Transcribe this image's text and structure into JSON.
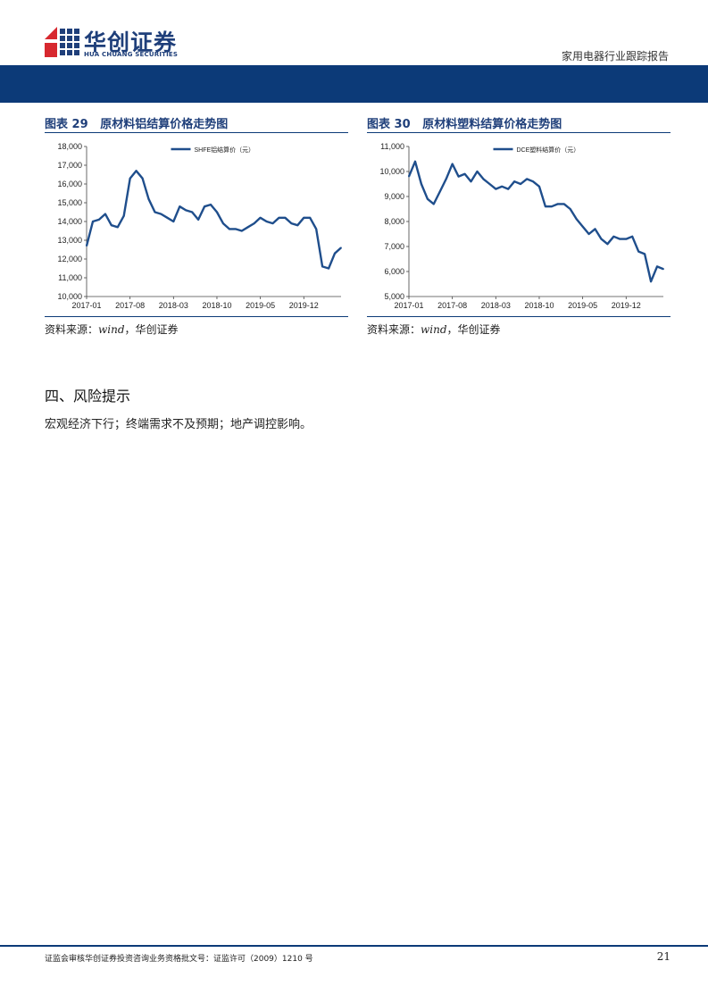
{
  "header": {
    "logo_cn": "华创证券",
    "logo_en": "HUA CHUANG SECURITIES",
    "report_type": "家用电器行业跟踪报告",
    "colors": {
      "brand_blue": "#0c3a78",
      "logo_red": "#d7282f"
    }
  },
  "figures": [
    {
      "label": "图表 29",
      "title": "原材料铝结算价格走势图",
      "source_prefix": "资料来源：",
      "source_italic": "wind",
      "source_suffix": "，华创证券"
    },
    {
      "label": "图表 30",
      "title": "原材料塑料结算价格走势图",
      "source_prefix": "资料来源：",
      "source_italic": "wind",
      "source_suffix": "，华创证券"
    }
  ],
  "chart_data": [
    {
      "type": "line",
      "legend": "SHFE铝结算价（元）",
      "legend_position": "top-center",
      "ylim": [
        10000,
        18000
      ],
      "yticks": [
        10000,
        11000,
        12000,
        13000,
        14000,
        15000,
        16000,
        17000,
        18000
      ],
      "ytick_labels": [
        "10,000",
        "11,000",
        "12,000",
        "13,000",
        "14,000",
        "15,000",
        "16,000",
        "17,000",
        "18,000"
      ],
      "xlim": [
        "2017-01",
        "2020-06"
      ],
      "xtick_labels": [
        "2017-01",
        "2017-08",
        "2018-03",
        "2018-10",
        "2019-05",
        "2019-12"
      ],
      "grid": false,
      "series_color": "#1f4e8c",
      "x": [
        "2017-01",
        "2017-02",
        "2017-03",
        "2017-04",
        "2017-05",
        "2017-06",
        "2017-07",
        "2017-08",
        "2017-09",
        "2017-10",
        "2017-11",
        "2017-12",
        "2018-01",
        "2018-02",
        "2018-03",
        "2018-04",
        "2018-05",
        "2018-06",
        "2018-07",
        "2018-08",
        "2018-09",
        "2018-10",
        "2018-11",
        "2018-12",
        "2019-01",
        "2019-02",
        "2019-03",
        "2019-04",
        "2019-05",
        "2019-06",
        "2019-07",
        "2019-08",
        "2019-09",
        "2019-10",
        "2019-11",
        "2019-12",
        "2020-01",
        "2020-02",
        "2020-03",
        "2020-04",
        "2020-05",
        "2020-06"
      ],
      "values": [
        12700,
        14000,
        14100,
        14400,
        13800,
        13700,
        14300,
        16300,
        16700,
        16300,
        15200,
        14500,
        14400,
        14200,
        14000,
        14800,
        14600,
        14500,
        14100,
        14800,
        14900,
        14500,
        13900,
        13600,
        13600,
        13500,
        13700,
        13900,
        14200,
        14000,
        13900,
        14200,
        14200,
        13900,
        13800,
        14200,
        14200,
        13600,
        11600,
        11500,
        12300,
        12600
      ]
    },
    {
      "type": "line",
      "legend": "DCE塑料结算价（元）",
      "legend_position": "top-center",
      "ylim": [
        5000,
        11000
      ],
      "yticks": [
        5000,
        6000,
        7000,
        8000,
        9000,
        10000,
        11000
      ],
      "ytick_labels": [
        "5,000",
        "6,000",
        "7,000",
        "8,000",
        "9,000",
        "10,000",
        "11,000"
      ],
      "xlim": [
        "2017-01",
        "2020-06"
      ],
      "xtick_labels": [
        "2017-01",
        "2017-08",
        "2018-03",
        "2018-10",
        "2019-05",
        "2019-12"
      ],
      "grid": false,
      "series_color": "#1f4e8c",
      "x": [
        "2017-01",
        "2017-02",
        "2017-03",
        "2017-04",
        "2017-05",
        "2017-06",
        "2017-07",
        "2017-08",
        "2017-09",
        "2017-10",
        "2017-11",
        "2017-12",
        "2018-01",
        "2018-02",
        "2018-03",
        "2018-04",
        "2018-05",
        "2018-06",
        "2018-07",
        "2018-08",
        "2018-09",
        "2018-10",
        "2018-11",
        "2018-12",
        "2019-01",
        "2019-02",
        "2019-03",
        "2019-04",
        "2019-05",
        "2019-06",
        "2019-07",
        "2019-08",
        "2019-09",
        "2019-10",
        "2019-11",
        "2019-12",
        "2020-01",
        "2020-02",
        "2020-03",
        "2020-04",
        "2020-05",
        "2020-06"
      ],
      "values": [
        9800,
        10400,
        9500,
        8900,
        8700,
        9200,
        9700,
        10300,
        9800,
        9900,
        9600,
        10000,
        9700,
        9500,
        9300,
        9400,
        9300,
        9600,
        9500,
        9700,
        9600,
        9400,
        8600,
        8600,
        8700,
        8700,
        8500,
        8100,
        7800,
        7500,
        7700,
        7300,
        7100,
        7400,
        7300,
        7300,
        7400,
        6800,
        6700,
        5600,
        6200,
        6100
      ]
    }
  ],
  "section": {
    "heading": "四、风险提示",
    "text": "宏观经济下行；终端需求不及预期；地产调控影响。"
  },
  "footer": {
    "license": "证监会审核华创证券投资咨询业务资格批文号：证监许可（2009）1210 号",
    "page": "21"
  }
}
